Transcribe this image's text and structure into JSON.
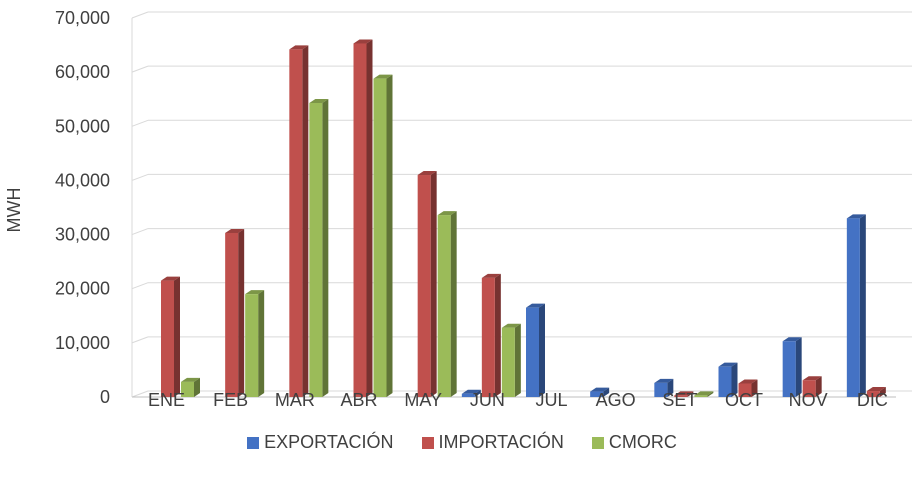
{
  "chart_data": {
    "type": "bar",
    "title": "",
    "xlabel": "",
    "ylabel": "MWH",
    "ylim": [
      0,
      70000
    ],
    "yticks": [
      "0",
      "10,000",
      "20,000",
      "30,000",
      "40,000",
      "50,000",
      "60,000",
      "70,000"
    ],
    "grid": true,
    "legend_position": "bottom",
    "categories": [
      "ENE",
      "FEB",
      "MAR",
      "ABR",
      "MAY",
      "JUN",
      "JUL",
      "AGO",
      "SET",
      "OCT",
      "NOV",
      "DIC"
    ],
    "series": [
      {
        "name": "EXPORTACIÓN",
        "color": "#4472C4",
        "values": [
          0,
          0,
          0,
          0,
          0,
          600,
          16500,
          1000,
          2600,
          5600,
          10300,
          33000
        ]
      },
      {
        "name": "IMPORTACIÓN",
        "color": "#C0504D",
        "values": [
          21500,
          30300,
          64200,
          65300,
          41000,
          22000,
          0,
          0,
          300,
          2500,
          3100,
          1100
        ]
      },
      {
        "name": "CMORC",
        "color": "#9BBB59",
        "values": [
          2800,
          19000,
          54300,
          58800,
          33600,
          12800,
          0,
          0,
          300,
          0,
          0,
          0
        ]
      }
    ]
  }
}
